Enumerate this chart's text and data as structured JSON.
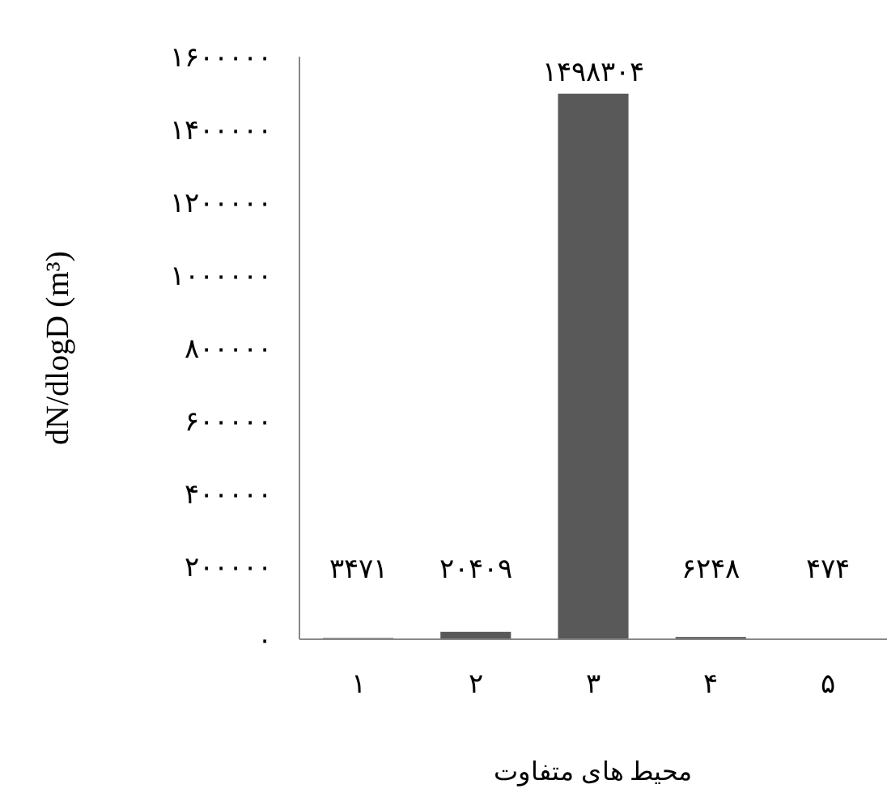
{
  "chart_data": {
    "type": "bar",
    "xlabel": "محیط های متفاوت",
    "ylabel": "dN/dlogD  (m³)",
    "categories": [
      "۱",
      "۲",
      "۳",
      "۴",
      "۵"
    ],
    "values": [
      3471,
      20409,
      1498304,
      6248,
      474
    ],
    "value_labels": [
      "۳۴۷۱",
      "۲۰۴۰۹",
      "۱۴۹۸۳۰۴",
      "۶۲۴۸",
      "۴۷۴"
    ],
    "color": "#595959",
    "ylim": [
      0,
      1600000
    ],
    "yticks": [
      {
        "value": 0,
        "label": "۰"
      },
      {
        "value": 200000,
        "label": "۲۰۰۰۰۰"
      },
      {
        "value": 400000,
        "label": "۴۰۰۰۰۰"
      },
      {
        "value": 600000,
        "label": "۶۰۰۰۰۰"
      },
      {
        "value": 800000,
        "label": "۸۰۰۰۰۰"
      },
      {
        "value": 1000000,
        "label": "۱۰۰۰۰۰۰"
      },
      {
        "value": 1200000,
        "label": "۱۲۰۰۰۰۰"
      },
      {
        "value": 1400000,
        "label": "۱۴۰۰۰۰۰"
      },
      {
        "value": 1600000,
        "label": "۱۶۰۰۰۰۰"
      }
    ]
  }
}
